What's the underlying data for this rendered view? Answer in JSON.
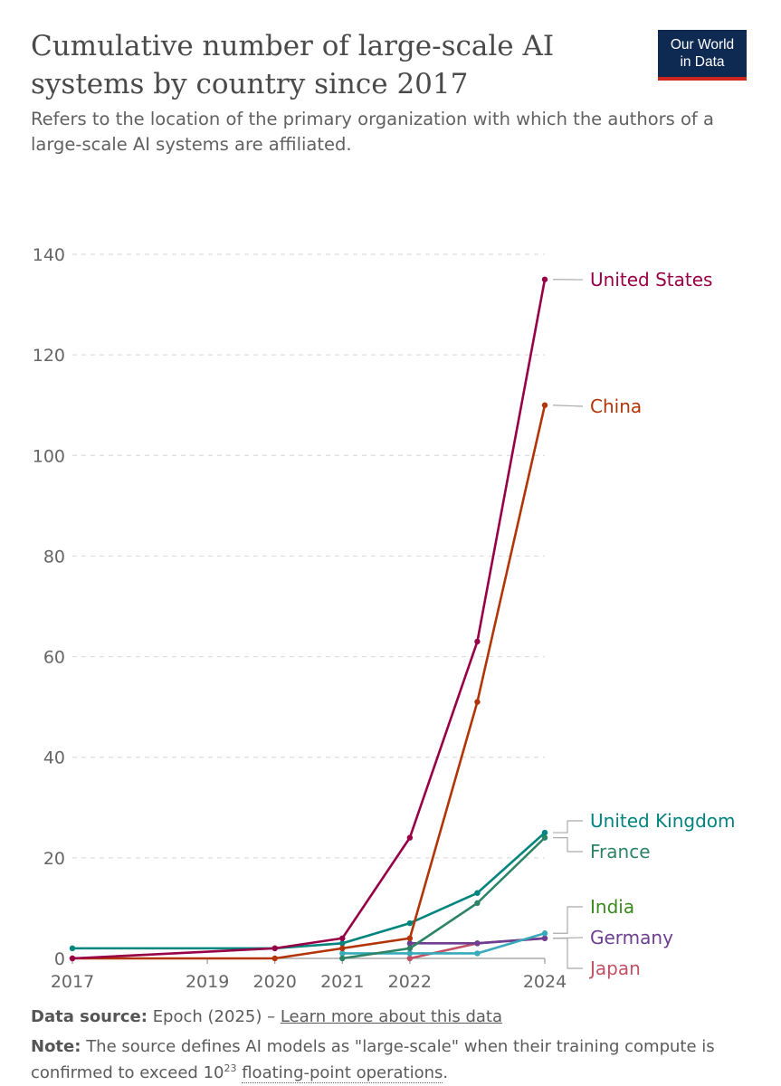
{
  "header": {
    "title": "Cumulative number of large-scale AI systems by country since 2017",
    "subtitle": "Refers to the location of the primary organization with which the authors of a large-scale AI systems are affiliated.",
    "logo_line1": "Our World",
    "logo_line2": "in Data"
  },
  "footer": {
    "source_label": "Data source:",
    "source_text": "Epoch (2025) –",
    "source_link": "Learn more about this data",
    "note_label": "Note:",
    "note_text_1": "The source defines AI models as \"large-scale\" when their training compute is confirmed to exceed 10",
    "note_sup": "23",
    "note_link": "floating-point operations",
    "note_end": "."
  },
  "chart_data": {
    "type": "line",
    "title": "Cumulative number of large-scale AI systems by country since 2017",
    "xlabel": "",
    "ylabel": "",
    "xlim": [
      2017,
      2024
    ],
    "ylim": [
      0,
      140
    ],
    "x_ticks": [
      "2017",
      "2019",
      "2020",
      "2021",
      "2022",
      "2024"
    ],
    "y_ticks": [
      "0",
      "20",
      "40",
      "60",
      "80",
      "100",
      "120",
      "140"
    ],
    "grid": "horizontal dashed",
    "legend": "labels at line ends (right)",
    "series": [
      {
        "name": "United States",
        "color": "#970046",
        "x": [
          2017,
          2020,
          2021,
          2022,
          2023,
          2024
        ],
        "y": [
          0,
          2,
          4,
          24,
          63,
          135
        ]
      },
      {
        "name": "China",
        "color": "#b13507",
        "x": [
          2017,
          2020,
          2021,
          2022,
          2023,
          2024
        ],
        "y": [
          0,
          0,
          2,
          4,
          51,
          110
        ]
      },
      {
        "name": "United Kingdom",
        "color": "#00847e",
        "x": [
          2017,
          2020,
          2021,
          2022,
          2023,
          2024
        ],
        "y": [
          2,
          2,
          3,
          7,
          13,
          25
        ]
      },
      {
        "name": "France",
        "color": "#2c8465",
        "x": [
          2021,
          2022,
          2023,
          2024
        ],
        "y": [
          0,
          2,
          11,
          24
        ]
      },
      {
        "name": "India",
        "color": "#38aaba",
        "x": [
          2021,
          2022,
          2023,
          2024
        ],
        "y": [
          1,
          1,
          1,
          5
        ]
      },
      {
        "name": "Germany",
        "color": "#6d3e91",
        "x": [
          2022,
          2023,
          2024
        ],
        "y": [
          3,
          3,
          4
        ]
      },
      {
        "name": "Japan",
        "color": "#c15065",
        "x": [
          2022,
          2023,
          2024
        ],
        "y": [
          0,
          3,
          4
        ]
      }
    ],
    "label_colors": {
      "United States": "#970046",
      "China": "#b13507",
      "United Kingdom": "#00847e",
      "France": "#2c8465",
      "India": "#3a8a1e",
      "Germany": "#6d3e91",
      "Japan": "#c15065"
    }
  }
}
